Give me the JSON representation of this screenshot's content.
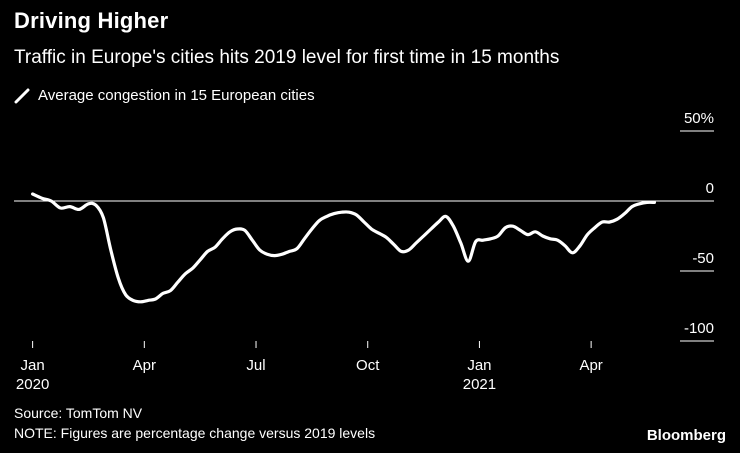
{
  "header": {
    "title": "Driving Higher",
    "subtitle": "Traffic in Europe's cities hits 2019 level for first time in 15 months"
  },
  "footer": {
    "source": "Source: TomTom NV",
    "note": "NOTE: Figures are percentage change versus 2019 levels",
    "brand": "Bloomberg"
  },
  "colors": {
    "background": "#000000",
    "line": "#ffffff",
    "grid": "#ffffff",
    "text": "#ffffff"
  },
  "chart_data": {
    "type": "line",
    "title": "Driving Higher",
    "subtitle": "Traffic in Europe's cities hits 2019 level for first time in 15 months",
    "xlabel": "",
    "ylabel": "",
    "ylim": [
      -100,
      50
    ],
    "y_ticks": [
      {
        "value": 50,
        "label": "50%"
      },
      {
        "value": 0,
        "label": "0"
      },
      {
        "value": -50,
        "label": "-50"
      },
      {
        "value": -100,
        "label": "-100"
      }
    ],
    "x_ticks": [
      {
        "t": 0,
        "label": "Jan",
        "year": "2020"
      },
      {
        "t": 3,
        "label": "Apr",
        "year": ""
      },
      {
        "t": 6,
        "label": "Jul",
        "year": ""
      },
      {
        "t": 9,
        "label": "Oct",
        "year": ""
      },
      {
        "t": 12,
        "label": "Jan",
        "year": "2021"
      },
      {
        "t": 15,
        "label": "Apr",
        "year": ""
      }
    ],
    "x_range": [
      -0.5,
      18.3
    ],
    "legend": [
      "Average congestion in 15 European cities"
    ],
    "legend_position": "top-left",
    "series": [
      {
        "name": "Average congestion in 15 European cities",
        "points": [
          [
            0.0,
            5
          ],
          [
            0.25,
            2
          ],
          [
            0.5,
            0
          ],
          [
            0.75,
            -5
          ],
          [
            1.0,
            -4
          ],
          [
            1.25,
            -6
          ],
          [
            1.5,
            -2
          ],
          [
            1.7,
            -3
          ],
          [
            1.9,
            -12
          ],
          [
            2.1,
            -35
          ],
          [
            2.3,
            -55
          ],
          [
            2.5,
            -67
          ],
          [
            2.7,
            -71
          ],
          [
            2.9,
            -72
          ],
          [
            3.1,
            -71
          ],
          [
            3.3,
            -70
          ],
          [
            3.5,
            -66
          ],
          [
            3.7,
            -64
          ],
          [
            3.9,
            -58
          ],
          [
            4.1,
            -52
          ],
          [
            4.3,
            -48
          ],
          [
            4.5,
            -42
          ],
          [
            4.7,
            -36
          ],
          [
            4.9,
            -33
          ],
          [
            5.1,
            -27
          ],
          [
            5.3,
            -22
          ],
          [
            5.5,
            -20
          ],
          [
            5.7,
            -21
          ],
          [
            5.9,
            -28
          ],
          [
            6.1,
            -35
          ],
          [
            6.3,
            -38
          ],
          [
            6.5,
            -39
          ],
          [
            6.7,
            -38
          ],
          [
            6.9,
            -36
          ],
          [
            7.1,
            -34
          ],
          [
            7.3,
            -27
          ],
          [
            7.5,
            -20
          ],
          [
            7.7,
            -14
          ],
          [
            7.9,
            -11
          ],
          [
            8.1,
            -9
          ],
          [
            8.3,
            -8
          ],
          [
            8.5,
            -8
          ],
          [
            8.7,
            -10
          ],
          [
            8.9,
            -15
          ],
          [
            9.1,
            -20
          ],
          [
            9.3,
            -23
          ],
          [
            9.5,
            -26
          ],
          [
            9.7,
            -31
          ],
          [
            9.9,
            -36
          ],
          [
            10.1,
            -35
          ],
          [
            10.3,
            -30
          ],
          [
            10.5,
            -25
          ],
          [
            10.7,
            -20
          ],
          [
            10.9,
            -15
          ],
          [
            11.1,
            -11
          ],
          [
            11.3,
            -18
          ],
          [
            11.5,
            -30
          ],
          [
            11.7,
            -43
          ],
          [
            11.9,
            -29
          ],
          [
            12.1,
            -28
          ],
          [
            12.3,
            -27
          ],
          [
            12.5,
            -25
          ],
          [
            12.7,
            -19
          ],
          [
            12.9,
            -18
          ],
          [
            13.1,
            -21
          ],
          [
            13.3,
            -24
          ],
          [
            13.5,
            -22
          ],
          [
            13.7,
            -25
          ],
          [
            13.9,
            -27
          ],
          [
            14.1,
            -28
          ],
          [
            14.3,
            -32
          ],
          [
            14.5,
            -37
          ],
          [
            14.7,
            -32
          ],
          [
            14.9,
            -24
          ],
          [
            15.1,
            -19
          ],
          [
            15.3,
            -15
          ],
          [
            15.5,
            -15
          ],
          [
            15.7,
            -13
          ],
          [
            15.9,
            -9
          ],
          [
            16.1,
            -4
          ],
          [
            16.3,
            -2
          ],
          [
            16.5,
            -1
          ],
          [
            16.7,
            -1
          ]
        ]
      }
    ]
  }
}
